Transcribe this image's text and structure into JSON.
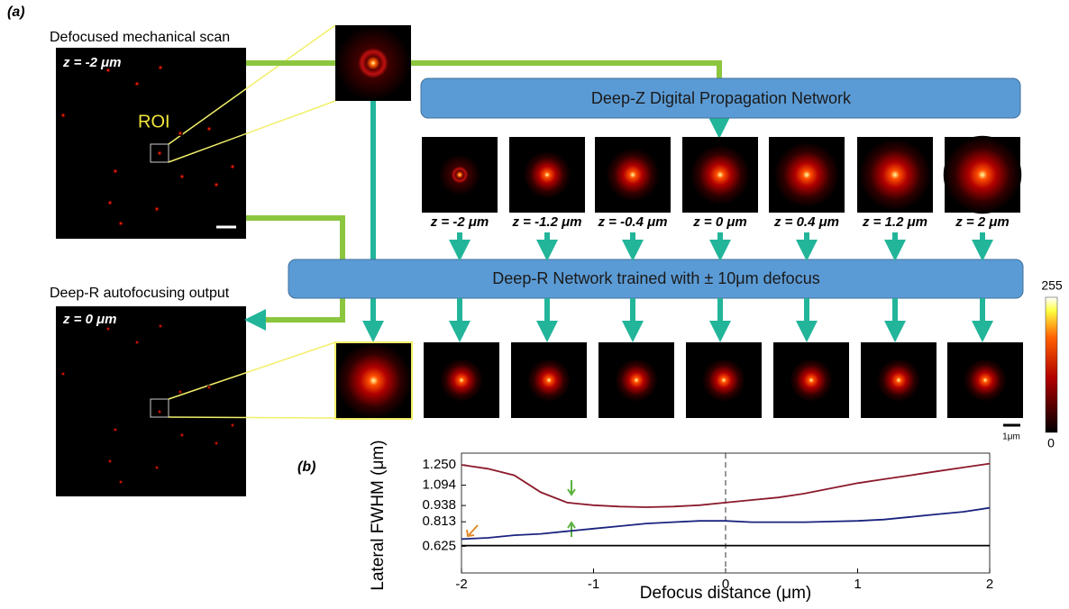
{
  "panel_a": {
    "label": "(a)",
    "top_title": "Defocused mechanical scan",
    "top_z": "z = -2 μm",
    "roi": "ROI",
    "deepz_banner": "Deep-Z Digital Propagation Network",
    "z_labels": [
      "z = -2 μm",
      "z = -1.2 μm",
      "z = -0.4 μm",
      "z = 0 μm",
      "z = 0.4 μm",
      "z = 1.2 μm",
      "z = 2 μm"
    ],
    "deepr_banner": "Deep-R Network trained with ± 10μm defocus",
    "bottom_title": "Deep-R autofocusing output",
    "bottom_z": "z = 0 μm",
    "colorbar_max": "255",
    "colorbar_min": "0",
    "scale_bar": "1μm"
  },
  "panel_b_label": "(b)",
  "chart_data": {
    "type": "line",
    "y_label": "Lateral FWHM (μm)",
    "x_label": "Defocus distance (μm)",
    "x": [
      -2,
      -1.8,
      -1.6,
      -1.4,
      -1.2,
      -1,
      -0.8,
      -0.6,
      -0.4,
      -0.2,
      0,
      0.2,
      0.4,
      0.6,
      0.8,
      1,
      1.2,
      1.4,
      1.6,
      1.8,
      2
    ],
    "series": [
      {
        "color": "#8b1a2b",
        "values": [
          1.25,
          1.22,
          1.17,
          1.04,
          0.96,
          0.94,
          0.93,
          0.925,
          0.93,
          0.94,
          0.96,
          0.98,
          1.0,
          1.03,
          1.07,
          1.11,
          1.14,
          1.17,
          1.2,
          1.23,
          1.26
        ]
      },
      {
        "color": "#1a237e",
        "values": [
          0.68,
          0.69,
          0.71,
          0.72,
          0.74,
          0.76,
          0.78,
          0.8,
          0.81,
          0.82,
          0.82,
          0.81,
          0.81,
          0.81,
          0.815,
          0.82,
          0.83,
          0.85,
          0.87,
          0.89,
          0.92
        ]
      },
      {
        "color": "#000000",
        "values": [
          0.63,
          0.63,
          0.63,
          0.63,
          0.63,
          0.63,
          0.63,
          0.63,
          0.63,
          0.63,
          0.63,
          0.63,
          0.63,
          0.63,
          0.63,
          0.63,
          0.63,
          0.63,
          0.63,
          0.63,
          0.63
        ]
      }
    ],
    "xlim": [
      -2,
      2
    ],
    "ylim": [
      0.42,
      1.34
    ],
    "xticks": [
      -2,
      -1,
      0,
      1,
      2
    ],
    "yticks": [
      0.625,
      0.813,
      0.938,
      1.094,
      {
        "value": 1.25,
        "label": "1.250"
      }
    ]
  }
}
